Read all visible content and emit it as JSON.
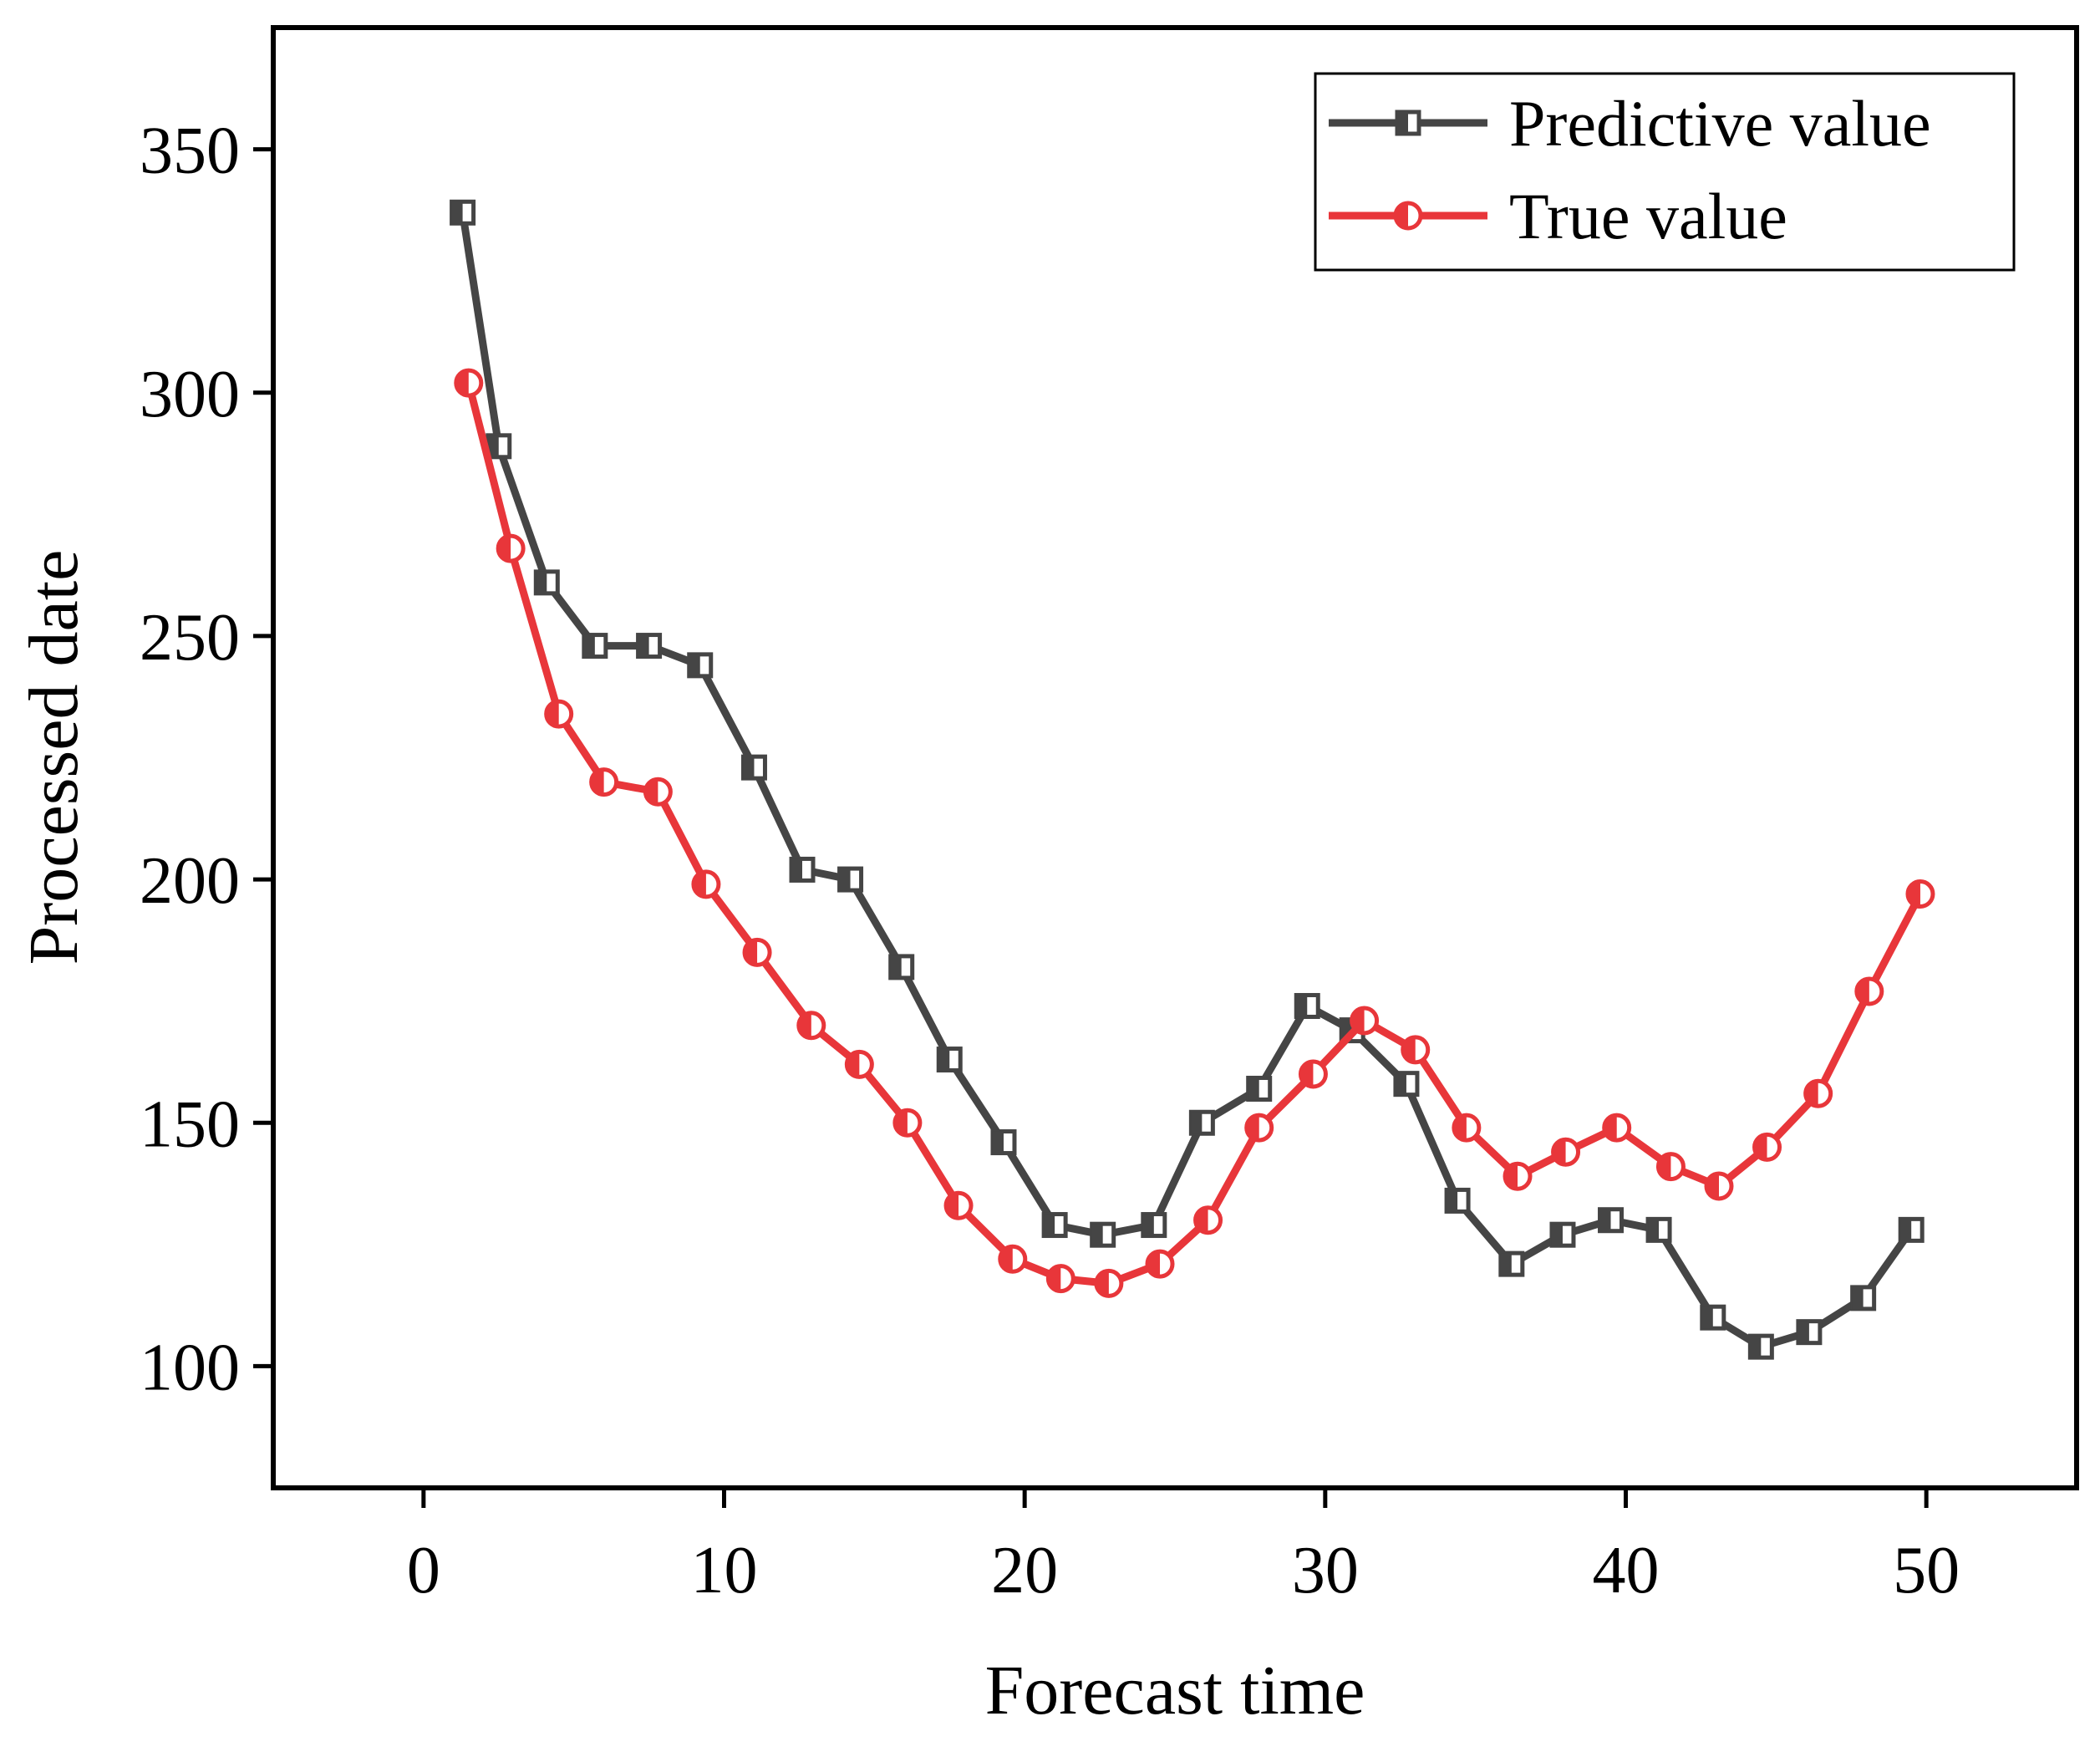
{
  "chart_data": {
    "type": "line",
    "title": "",
    "xlabel": "Forecast time",
    "ylabel": "Processed date",
    "xlim": [
      -5,
      55
    ],
    "ylim": [
      75,
      375
    ],
    "xticks": [
      0,
      10,
      20,
      30,
      40,
      50
    ],
    "yticks": [
      100,
      150,
      200,
      250,
      300,
      350
    ],
    "grid": false,
    "legend_position": "top-right",
    "series": [
      {
        "name": "Predictive value",
        "color": "#454545",
        "marker": "half-filled-square",
        "x": [
          1.3,
          2.5,
          4.1,
          5.7,
          7.5,
          9.2,
          11.0,
          12.6,
          14.2,
          15.9,
          17.5,
          19.3,
          21.0,
          22.6,
          24.3,
          25.9,
          27.8,
          29.4,
          30.9,
          32.7,
          34.4,
          36.2,
          37.9,
          39.5,
          41.1,
          42.9,
          44.5,
          46.1,
          47.9,
          49.5
        ],
        "values": [
          337,
          289,
          261,
          248,
          248,
          244,
          223,
          202,
          200,
          182,
          163,
          146,
          129,
          127,
          129,
          150,
          157,
          174,
          169,
          158,
          134,
          121,
          127,
          130,
          128,
          110,
          104,
          107,
          114,
          128
        ]
      },
      {
        "name": "True value",
        "color": "#e8363a",
        "marker": "half-filled-circle",
        "x": [
          1.5,
          2.9,
          4.5,
          6.0,
          7.8,
          9.4,
          11.1,
          12.9,
          14.5,
          16.1,
          17.8,
          19.6,
          21.2,
          22.8,
          24.5,
          26.1,
          27.8,
          29.6,
          31.3,
          33.0,
          34.7,
          36.4,
          38.0,
          39.7,
          41.5,
          43.1,
          44.7,
          46.4,
          48.1,
          49.8
        ],
        "values": [
          302,
          268,
          234,
          220,
          218,
          199,
          185,
          170,
          162,
          150,
          133,
          122,
          118,
          117,
          121,
          130,
          149,
          160,
          171,
          165,
          149,
          139,
          144,
          149,
          141,
          137,
          145,
          156,
          177,
          197
        ]
      }
    ]
  }
}
